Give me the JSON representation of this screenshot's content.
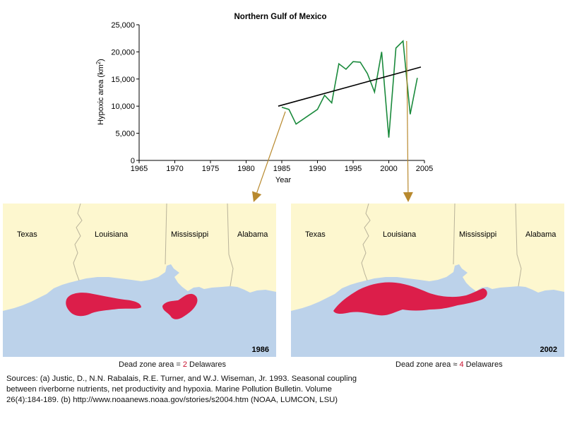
{
  "chart_data": {
    "type": "line",
    "title": "Northern Gulf of Mexico",
    "xlabel": "Year",
    "ylabel": "Hypoxic area (km",
    "ylabel_sup": "2",
    "ylabel_close": ")",
    "xlim": [
      1965,
      2005
    ],
    "ylim": [
      0,
      25000
    ],
    "xticks": [
      "1965",
      "1970",
      "1975",
      "1980",
      "1985",
      "1990",
      "1995",
      "2000",
      "2005"
    ],
    "yticks": [
      "0",
      "5,000",
      "10,000",
      "15,000",
      "20,000",
      "25,000"
    ],
    "grid": false,
    "series": [
      {
        "color": "#1a8a3c",
        "x": [
          1985,
          1986,
          1987,
          1990,
          1991,
          1992,
          1993,
          1994,
          1995,
          1996,
          1997,
          1998,
          1999,
          2000,
          2001,
          2002,
          2003,
          2004
        ],
        "values": [
          9800,
          9400,
          6700,
          9400,
          12000,
          10600,
          17800,
          16800,
          18200,
          18100,
          16000,
          12600,
          20000,
          4200,
          20700,
          22000,
          8500,
          15200
        ]
      }
    ],
    "trend": {
      "color": "#000000",
      "x": [
        1984.5,
        2004.5
      ],
      "values": [
        10000,
        17200
      ]
    },
    "connectors": [
      {
        "from_year": 1985.5,
        "from_value": 9000,
        "to_panel": "left",
        "color": "#b8892e"
      },
      {
        "from_year": 2002.5,
        "from_value": 22000,
        "to_panel": "right",
        "color": "#b8892e"
      }
    ]
  },
  "maps": {
    "colors": {
      "land": "#fdf7cf",
      "water": "#bcd2ea",
      "hypoxia": "#dc1e4a",
      "border": "#b9b39a"
    },
    "left": {
      "year": "1986",
      "states": [
        "Texas",
        "Louisiana",
        "Mississippi",
        "Alabama"
      ],
      "caption_prefix": "Dead zone area = ",
      "caption_number": "2",
      "caption_suffix": " Delawares"
    },
    "right": {
      "year": "2002",
      "states": [
        "Texas",
        "Louisiana",
        "Mississippi",
        "Alabama"
      ],
      "caption_prefix": "Dead zone area ≈ ",
      "caption_number": "4",
      "caption_suffix": " Delawares"
    }
  },
  "sources": [
    "Sources: (a) Justic, D., N.N. Rabalais, R.E. Turner, and W.J. Wiseman, Jr. 1993. Seasonal coupling",
    "between riverborne nutrients, net productivity and hypoxia. Marine Pollution Bulletin. Volume",
    "26(4):184-189.  (b) http://www.noaanews.noaa.gov/stories/s2004.htm (NOAA, LUMCON, LSU)"
  ]
}
